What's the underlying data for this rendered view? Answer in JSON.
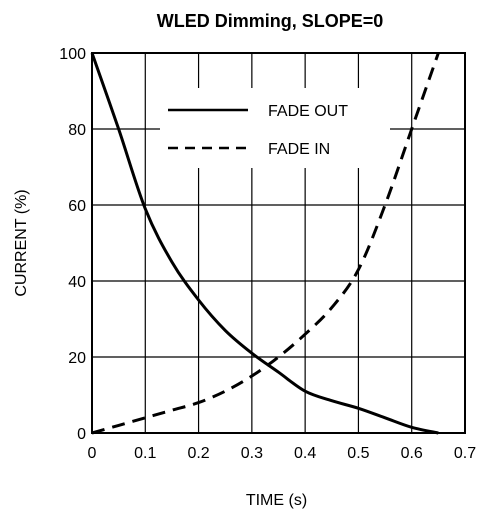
{
  "chart_data": {
    "type": "line",
    "title": "WLED Dimming, SLOPE=0",
    "xlabel": "TIME (s)",
    "ylabel": "CURRENT (%)",
    "xlim": [
      0,
      0.7
    ],
    "ylim": [
      0,
      100
    ],
    "xticks": [
      "0",
      "0.1",
      "0.2",
      "0.3",
      "0.4",
      "0.5",
      "0.6",
      "0.7"
    ],
    "yticks": [
      "0",
      "20",
      "40",
      "60",
      "80",
      "100"
    ],
    "grid": true,
    "legend_position": "top-center",
    "series": [
      {
        "name": "FADE OUT",
        "style": "solid",
        "x": [
          0,
          0.05,
          0.1,
          0.15,
          0.2,
          0.25,
          0.3,
          0.35,
          0.4,
          0.45,
          0.5,
          0.55,
          0.6,
          0.65
        ],
        "y": [
          100,
          80,
          59,
          45,
          35,
          27,
          21,
          16,
          11,
          8.5,
          6.5,
          4,
          1.5,
          0
        ]
      },
      {
        "name": "FADE IN",
        "style": "dashed",
        "x": [
          0,
          0.05,
          0.1,
          0.15,
          0.2,
          0.25,
          0.3,
          0.35,
          0.4,
          0.45,
          0.5,
          0.55,
          0.6,
          0.65
        ],
        "y": [
          0,
          2,
          4,
          6,
          8,
          11,
          15,
          20,
          26,
          33,
          43,
          60,
          80,
          100
        ]
      }
    ]
  }
}
